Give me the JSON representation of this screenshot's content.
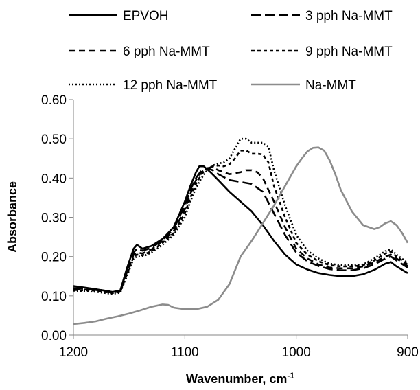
{
  "chart_data": {
    "type": "line",
    "title": "",
    "xlabel": "Wavenumber, cm",
    "xlabel_superscript": "-1",
    "ylabel": "Absorbance",
    "xlim": [
      1200,
      900
    ],
    "x_reversed": true,
    "ylim": [
      0,
      0.6
    ],
    "xticks": [
      1200,
      1100,
      1000,
      900
    ],
    "yticks": [
      "0.00",
      "0.10",
      "0.20",
      "0.30",
      "0.40",
      "0.50",
      "0.60"
    ],
    "grid": false,
    "legend_position": "top",
    "series": [
      {
        "name": "EPVOH",
        "color": "#000000",
        "dash": "solid",
        "x": [
          1200,
          1180,
          1165,
          1158,
          1152,
          1146,
          1143,
          1138,
          1130,
          1120,
          1110,
          1100,
          1095,
          1090,
          1087,
          1083,
          1077,
          1070,
          1060,
          1050,
          1040,
          1030,
          1020,
          1010,
          1000,
          990,
          980,
          970,
          960,
          950,
          940,
          930,
          920,
          915,
          910,
          900
        ],
        "y": [
          0.125,
          0.117,
          0.11,
          0.113,
          0.17,
          0.22,
          0.23,
          0.22,
          0.227,
          0.245,
          0.275,
          0.34,
          0.38,
          0.415,
          0.43,
          0.43,
          0.415,
          0.395,
          0.365,
          0.34,
          0.315,
          0.28,
          0.24,
          0.205,
          0.18,
          0.167,
          0.158,
          0.153,
          0.15,
          0.15,
          0.155,
          0.166,
          0.182,
          0.186,
          0.175,
          0.158
        ]
      },
      {
        "name": "3 pph Na-MMT",
        "color": "#000000",
        "dash": "longdash",
        "x": [
          1200,
          1180,
          1165,
          1158,
          1152,
          1146,
          1143,
          1138,
          1130,
          1120,
          1110,
          1100,
          1095,
          1090,
          1085,
          1080,
          1075,
          1070,
          1060,
          1050,
          1040,
          1030,
          1020,
          1010,
          1000,
          990,
          980,
          970,
          960,
          950,
          940,
          930,
          920,
          915,
          910,
          900
        ],
        "y": [
          0.12,
          0.117,
          0.11,
          0.113,
          0.165,
          0.21,
          0.22,
          0.215,
          0.222,
          0.242,
          0.27,
          0.33,
          0.37,
          0.4,
          0.42,
          0.425,
          0.42,
          0.41,
          0.395,
          0.39,
          0.385,
          0.365,
          0.31,
          0.255,
          0.21,
          0.188,
          0.176,
          0.168,
          0.165,
          0.165,
          0.17,
          0.18,
          0.195,
          0.2,
          0.19,
          0.172
        ]
      },
      {
        "name": "6 pph Na-MMT",
        "color": "#000000",
        "dash": "dash",
        "x": [
          1200,
          1180,
          1165,
          1158,
          1152,
          1146,
          1143,
          1138,
          1130,
          1120,
          1110,
          1100,
          1095,
          1090,
          1085,
          1080,
          1075,
          1070,
          1060,
          1050,
          1045,
          1040,
          1035,
          1030,
          1020,
          1010,
          1000,
          990,
          980,
          970,
          960,
          950,
          940,
          930,
          920,
          915,
          910,
          900
        ],
        "y": [
          0.117,
          0.115,
          0.108,
          0.112,
          0.16,
          0.205,
          0.21,
          0.208,
          0.218,
          0.24,
          0.265,
          0.32,
          0.36,
          0.395,
          0.415,
          0.425,
          0.428,
          0.42,
          0.41,
          0.415,
          0.42,
          0.42,
          0.415,
          0.4,
          0.34,
          0.275,
          0.22,
          0.195,
          0.18,
          0.172,
          0.17,
          0.17,
          0.175,
          0.185,
          0.2,
          0.205,
          0.195,
          0.176
        ]
      },
      {
        "name": "9 pph Na-MMT",
        "color": "#000000",
        "dash": "shortdash",
        "x": [
          1200,
          1180,
          1165,
          1158,
          1152,
          1146,
          1143,
          1138,
          1130,
          1120,
          1110,
          1100,
          1095,
          1090,
          1085,
          1080,
          1075,
          1070,
          1065,
          1060,
          1055,
          1050,
          1045,
          1040,
          1035,
          1030,
          1025,
          1020,
          1010,
          1000,
          990,
          980,
          970,
          960,
          950,
          940,
          930,
          920,
          915,
          910,
          900
        ],
        "y": [
          0.115,
          0.113,
          0.107,
          0.11,
          0.155,
          0.2,
          0.205,
          0.203,
          0.214,
          0.235,
          0.26,
          0.31,
          0.35,
          0.385,
          0.41,
          0.425,
          0.43,
          0.432,
          0.43,
          0.435,
          0.45,
          0.47,
          0.47,
          0.462,
          0.462,
          0.46,
          0.44,
          0.38,
          0.3,
          0.235,
          0.205,
          0.188,
          0.178,
          0.175,
          0.175,
          0.178,
          0.19,
          0.208,
          0.213,
          0.2,
          0.18
        ]
      },
      {
        "name": "12 pph Na-MMT",
        "color": "#000000",
        "dash": "dot",
        "x": [
          1200,
          1180,
          1165,
          1158,
          1152,
          1146,
          1143,
          1138,
          1130,
          1120,
          1110,
          1100,
          1095,
          1090,
          1085,
          1080,
          1075,
          1070,
          1065,
          1060,
          1055,
          1050,
          1045,
          1040,
          1035,
          1030,
          1025,
          1020,
          1010,
          1000,
          990,
          980,
          970,
          960,
          950,
          940,
          930,
          920,
          915,
          910,
          900
        ],
        "y": [
          0.113,
          0.11,
          0.105,
          0.108,
          0.15,
          0.195,
          0.2,
          0.2,
          0.21,
          0.23,
          0.255,
          0.3,
          0.34,
          0.375,
          0.4,
          0.42,
          0.432,
          0.437,
          0.44,
          0.45,
          0.475,
          0.5,
          0.5,
          0.49,
          0.49,
          0.49,
          0.48,
          0.42,
          0.33,
          0.255,
          0.215,
          0.195,
          0.182,
          0.178,
          0.178,
          0.18,
          0.195,
          0.214,
          0.218,
          0.205,
          0.184
        ]
      },
      {
        "name": "Na-MMT",
        "color": "#8c8c8c",
        "dash": "solid",
        "x": [
          1200,
          1190,
          1180,
          1170,
          1160,
          1150,
          1140,
          1130,
          1120,
          1115,
          1110,
          1100,
          1090,
          1080,
          1070,
          1060,
          1055,
          1050,
          1040,
          1030,
          1020,
          1010,
          1000,
          995,
          990,
          985,
          980,
          975,
          970,
          965,
          960,
          950,
          940,
          930,
          925,
          920,
          915,
          910,
          905,
          900
        ],
        "y": [
          0.028,
          0.031,
          0.035,
          0.042,
          0.048,
          0.055,
          0.063,
          0.072,
          0.078,
          0.077,
          0.07,
          0.066,
          0.066,
          0.072,
          0.09,
          0.13,
          0.165,
          0.2,
          0.24,
          0.285,
          0.33,
          0.38,
          0.43,
          0.45,
          0.468,
          0.477,
          0.478,
          0.47,
          0.445,
          0.41,
          0.37,
          0.315,
          0.28,
          0.27,
          0.275,
          0.285,
          0.29,
          0.28,
          0.26,
          0.235
        ]
      }
    ]
  }
}
